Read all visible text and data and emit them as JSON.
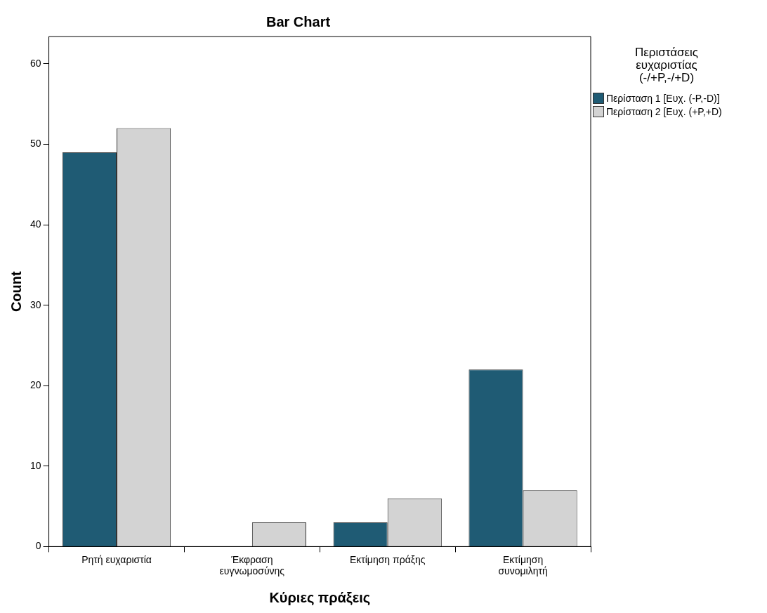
{
  "chart_data": {
    "type": "bar",
    "title": "Bar Chart",
    "xlabel": "Κύριες πράξεις",
    "ylabel": "Count",
    "legend_title": "Περιστάσεις ευχαριστίας (-/+P,-/+D)",
    "categories": [
      "Ρητή ευχαριστία",
      "Έκφραση ευγνωμοσύνης",
      "Εκτίμηση πράξης",
      "Εκτίμηση συνομιλητή"
    ],
    "series": [
      {
        "name": "Περίσταση 1 [Ευχ. (-P,-D)]",
        "color": "#1f5b74",
        "values": [
          49,
          0,
          3,
          22
        ]
      },
      {
        "name": "Περίσταση 2 [Ευχ. (+P,+D)",
        "color": "#d3d3d3",
        "values": [
          52,
          3,
          6,
          7
        ]
      }
    ],
    "ylim": [
      0,
      63.4
    ],
    "yticks": [
      0,
      10,
      20,
      30,
      40,
      50,
      60
    ],
    "grid": false,
    "legend": "right"
  }
}
